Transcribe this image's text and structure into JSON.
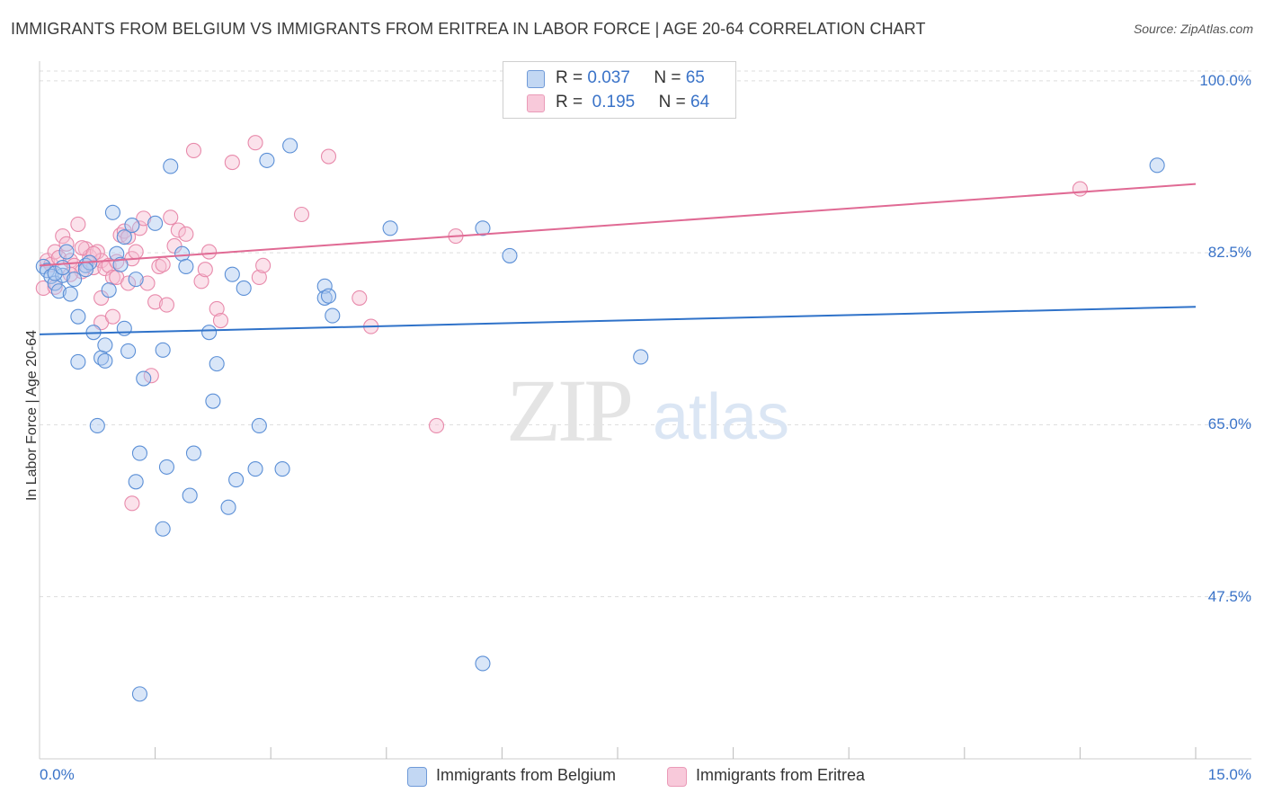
{
  "header": {
    "title": "IMMIGRANTS FROM BELGIUM VS IMMIGRANTS FROM ERITREA IN LABOR FORCE | AGE 20-64 CORRELATION CHART",
    "source": "Source: ZipAtlas.com"
  },
  "watermark": {
    "zip": "ZIP",
    "atlas": "atlas"
  },
  "legend": {
    "r_label": "R =",
    "n_label": "N =",
    "belgium": {
      "r": "0.037",
      "n": "65"
    },
    "eritrea": {
      "r": "0.195",
      "n": "64"
    }
  },
  "colors": {
    "belgium_fill": "#aac8f0",
    "belgium_stroke": "#5b8fd6",
    "belgium_line": "#2f72c9",
    "eritrea_fill": "#f6bfd2",
    "eritrea_stroke": "#e88aab",
    "eritrea_line": "#e06a94",
    "tick_text": "#3a73c8",
    "grid": "#dddddd"
  },
  "chart_data": {
    "type": "scatter",
    "title": "IMMIGRANTS FROM BELGIUM VS IMMIGRANTS FROM ERITREA IN LABOR FORCE | AGE 20-64 CORRELATION CHART",
    "ylabel": "In Labor Force | Age 20-64",
    "xlim": [
      0,
      15
    ],
    "ylim": [
      31,
      102
    ],
    "x_tick_labels": [
      "0.0%",
      "15.0%"
    ],
    "y_ticks": [
      47.5,
      65.0,
      82.5,
      100.0
    ],
    "y_tick_labels": [
      "47.5%",
      "65.0%",
      "82.5%",
      "100.0%"
    ],
    "grid": "horizontal dashed",
    "legend_position": "top-center",
    "series": [
      {
        "name": "Immigrants from Belgium",
        "color": "#5b8fd6",
        "trend": {
          "x": [
            0,
            15
          ],
          "y": [
            74.2,
            77.0
          ]
        },
        "points": [
          [
            0.05,
            81.1
          ],
          [
            0.1,
            80.7
          ],
          [
            0.15,
            80.1
          ],
          [
            0.2,
            79.4
          ],
          [
            0.25,
            78.6
          ],
          [
            0.3,
            80.2
          ],
          [
            0.35,
            82.6
          ],
          [
            0.45,
            79.8
          ],
          [
            0.5,
            76.0
          ],
          [
            0.5,
            71.4
          ],
          [
            0.6,
            81.2
          ],
          [
            0.65,
            81.5
          ],
          [
            0.7,
            74.4
          ],
          [
            0.75,
            64.9
          ],
          [
            0.8,
            71.8
          ],
          [
            0.85,
            73.1
          ],
          [
            0.85,
            71.5
          ],
          [
            0.9,
            78.7
          ],
          [
            0.95,
            86.6
          ],
          [
            1.0,
            82.4
          ],
          [
            1.1,
            84.1
          ],
          [
            1.1,
            74.8
          ],
          [
            1.15,
            72.5
          ],
          [
            1.2,
            85.3
          ],
          [
            1.25,
            79.8
          ],
          [
            1.25,
            59.2
          ],
          [
            1.3,
            62.1
          ],
          [
            1.35,
            69.7
          ],
          [
            1.5,
            85.5
          ],
          [
            1.6,
            72.6
          ],
          [
            1.6,
            54.4
          ],
          [
            1.65,
            60.7
          ],
          [
            1.7,
            91.3
          ],
          [
            1.85,
            82.4
          ],
          [
            1.9,
            81.1
          ],
          [
            1.95,
            57.8
          ],
          [
            2.0,
            62.1
          ],
          [
            2.2,
            74.4
          ],
          [
            2.25,
            67.4
          ],
          [
            2.3,
            71.2
          ],
          [
            2.45,
            56.6
          ],
          [
            2.5,
            80.3
          ],
          [
            2.55,
            59.4
          ],
          [
            2.65,
            78.9
          ],
          [
            2.8,
            60.5
          ],
          [
            2.85,
            64.9
          ],
          [
            2.95,
            91.9
          ],
          [
            3.15,
            60.5
          ],
          [
            3.25,
            93.4
          ],
          [
            3.7,
            79.1
          ],
          [
            3.7,
            77.9
          ],
          [
            3.75,
            78.1
          ],
          [
            3.8,
            76.1
          ],
          [
            4.55,
            85.0
          ],
          [
            5.75,
            85.0
          ],
          [
            5.75,
            40.7
          ],
          [
            6.1,
            82.2
          ],
          [
            7.8,
            71.9
          ],
          [
            14.5,
            91.4
          ],
          [
            1.3,
            37.6
          ],
          [
            0.2,
            80.4
          ],
          [
            0.4,
            78.3
          ],
          [
            0.6,
            80.8
          ],
          [
            1.05,
            81.3
          ],
          [
            0.3,
            81.0
          ]
        ]
      },
      {
        "name": "Immigrants from Eritrea",
        "color": "#e88aab",
        "trend": {
          "x": [
            0,
            15
          ],
          "y": [
            81.2,
            89.5
          ]
        },
        "points": [
          [
            0.05,
            78.9
          ],
          [
            0.1,
            81.7
          ],
          [
            0.15,
            81.3
          ],
          [
            0.2,
            82.6
          ],
          [
            0.25,
            82.0
          ],
          [
            0.3,
            84.2
          ],
          [
            0.35,
            83.4
          ],
          [
            0.4,
            81.7
          ],
          [
            0.45,
            81.2
          ],
          [
            0.5,
            85.4
          ],
          [
            0.55,
            80.6
          ],
          [
            0.6,
            82.9
          ],
          [
            0.65,
            82.1
          ],
          [
            0.7,
            81.0
          ],
          [
            0.75,
            82.6
          ],
          [
            0.8,
            81.7
          ],
          [
            0.8,
            75.4
          ],
          [
            0.8,
            77.9
          ],
          [
            0.85,
            80.9
          ],
          [
            0.9,
            81.2
          ],
          [
            0.95,
            80.0
          ],
          [
            1.0,
            80.0
          ],
          [
            1.05,
            84.3
          ],
          [
            1.1,
            84.7
          ],
          [
            1.15,
            79.4
          ],
          [
            1.15,
            84.1
          ],
          [
            1.2,
            81.9
          ],
          [
            1.25,
            82.6
          ],
          [
            1.3,
            85.0
          ],
          [
            1.35,
            86.0
          ],
          [
            1.4,
            79.4
          ],
          [
            1.5,
            77.5
          ],
          [
            1.55,
            81.1
          ],
          [
            1.6,
            81.3
          ],
          [
            1.65,
            77.2
          ],
          [
            1.7,
            86.1
          ],
          [
            1.75,
            83.2
          ],
          [
            1.8,
            84.8
          ],
          [
            1.9,
            84.4
          ],
          [
            2.0,
            92.9
          ],
          [
            2.1,
            79.6
          ],
          [
            2.15,
            80.8
          ],
          [
            2.2,
            82.6
          ],
          [
            2.3,
            76.8
          ],
          [
            2.35,
            75.6
          ],
          [
            2.5,
            91.7
          ],
          [
            2.8,
            93.7
          ],
          [
            2.85,
            80.0
          ],
          [
            2.9,
            81.2
          ],
          [
            3.4,
            86.4
          ],
          [
            3.75,
            92.3
          ],
          [
            4.15,
            77.9
          ],
          [
            4.3,
            75.0
          ],
          [
            5.15,
            64.9
          ],
          [
            5.4,
            84.2
          ],
          [
            13.5,
            89.0
          ],
          [
            0.4,
            80.3
          ],
          [
            0.55,
            83.0
          ],
          [
            0.95,
            76.0
          ],
          [
            1.45,
            70.0
          ],
          [
            1.2,
            57.0
          ],
          [
            0.2,
            79.0
          ],
          [
            0.7,
            82.4
          ],
          [
            1.0,
            81.6
          ]
        ]
      }
    ]
  },
  "bottom_legend": {
    "belgium": "Immigrants from Belgium",
    "eritrea": "Immigrants from Eritrea"
  }
}
